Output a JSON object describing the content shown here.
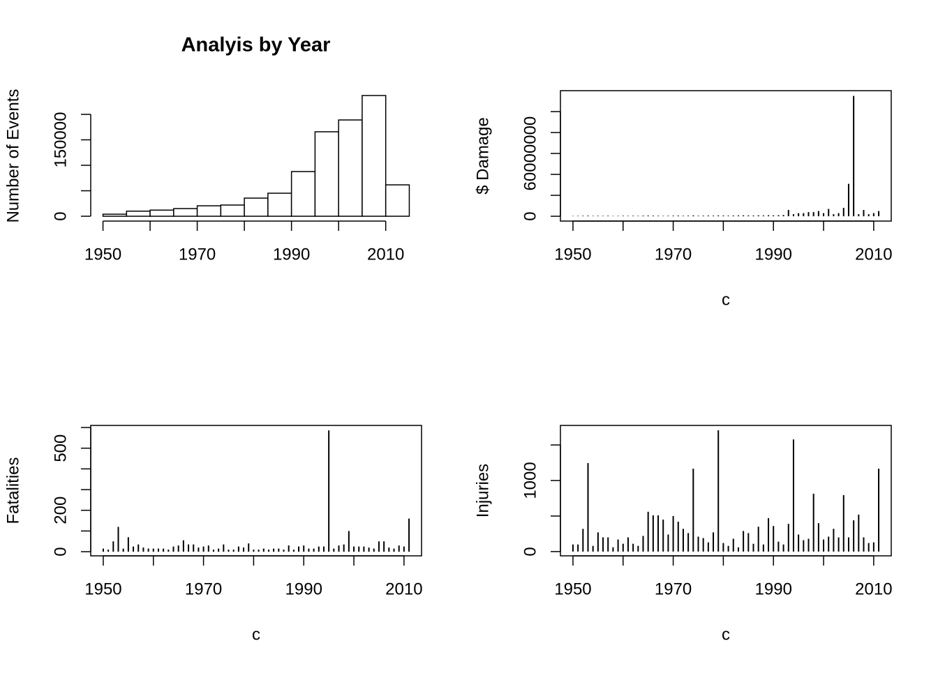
{
  "chart_data": [
    {
      "type": "histogram",
      "title": "Analyis by Year",
      "ylabel": "Number of Events",
      "bins": [
        1950,
        1955,
        1960,
        1965,
        1970,
        1975,
        1980,
        1985,
        1990,
        1995,
        2000,
        2005,
        2010,
        2015
      ],
      "values": [
        4000,
        10000,
        12000,
        15000,
        20500,
        22000,
        35600,
        45200,
        87700,
        165800,
        189000,
        237000,
        61600
      ],
      "color": "#ffffff",
      "stroke": "#000000",
      "box": false,
      "xlim": [
        1947.4,
        2017.6
      ],
      "ylim": [
        -9500,
        246500
      ],
      "xticks": [
        1950,
        {
          "value": 1960,
          "label": null
        },
        1970,
        {
          "value": 1980,
          "label": null
        },
        1990,
        {
          "value": 2000,
          "label": null
        },
        2010
      ],
      "yticks": [
        0,
        {
          "value": 50000,
          "label": null
        },
        {
          "value": 100000,
          "label": null
        },
        150000,
        {
          "value": 200000,
          "label": null
        }
      ]
    },
    {
      "type": "spike",
      "ylabel": "$ Damage",
      "xlabel": "c",
      "x": [
        1950,
        1951,
        1952,
        1953,
        1954,
        1955,
        1956,
        1957,
        1958,
        1959,
        1960,
        1961,
        1962,
        1963,
        1964,
        1965,
        1966,
        1967,
        1968,
        1969,
        1970,
        1971,
        1972,
        1973,
        1974,
        1975,
        1976,
        1977,
        1978,
        1979,
        1980,
        1981,
        1982,
        1983,
        1984,
        1985,
        1986,
        1987,
        1988,
        1989,
        1990,
        1991,
        1992,
        1993,
        1994,
        1995,
        1996,
        1997,
        1998,
        1999,
        2000,
        2001,
        2002,
        2003,
        2004,
        2005,
        2006,
        2007,
        2008,
        2009,
        2010,
        2011
      ],
      "values": [
        300000,
        400000,
        500000,
        600000,
        400000,
        500000,
        400000,
        500000,
        300000,
        400000,
        500000,
        400000,
        500000,
        400000,
        600000,
        700000,
        600000,
        500000,
        400000,
        500000,
        600000,
        700000,
        500000,
        600000,
        800000,
        500000,
        600000,
        700000,
        600000,
        800000,
        700000,
        600000,
        700000,
        800000,
        900000,
        800000,
        700000,
        900000,
        800000,
        1000000,
        900000,
        1000000,
        1200000,
        6000000,
        2000000,
        3000000,
        3000000,
        4000000,
        4000000,
        5000000,
        3000000,
        7000000,
        2000000,
        3000000,
        8000000,
        31000000,
        115000000,
        2000000,
        6000000,
        2000000,
        3000000,
        5000000
      ],
      "color": "#000000",
      "box": true,
      "xlim": [
        1947.5,
        2013.5
      ],
      "ylim": [
        -4600000,
        120000000
      ],
      "xticks": [
        1950,
        {
          "value": 1960,
          "label": null
        },
        1970,
        {
          "value": 1980,
          "label": null
        },
        1990,
        {
          "value": 2000,
          "label": null
        },
        2010
      ],
      "yticks": [
        0,
        {
          "value": 20000000,
          "label": null
        },
        {
          "value": 40000000,
          "label": null
        },
        60000000,
        {
          "value": 80000000,
          "label": null
        },
        {
          "value": 100000000,
          "label": null
        }
      ]
    },
    {
      "type": "spike",
      "ylabel": "Fatalities",
      "xlabel": "c",
      "x": [
        1950,
        1951,
        1952,
        1953,
        1954,
        1955,
        1956,
        1957,
        1958,
        1959,
        1960,
        1961,
        1962,
        1963,
        1964,
        1965,
        1966,
        1967,
        1968,
        1969,
        1970,
        1971,
        1972,
        1973,
        1974,
        1975,
        1976,
        1977,
        1978,
        1979,
        1980,
        1981,
        1982,
        1983,
        1984,
        1985,
        1986,
        1987,
        1988,
        1989,
        1990,
        1991,
        1992,
        1993,
        1994,
        1995,
        1996,
        1997,
        1998,
        1999,
        2000,
        2001,
        2002,
        2003,
        2004,
        2005,
        2006,
        2007,
        2008,
        2009,
        2010,
        2011
      ],
      "values": [
        15,
        10,
        50,
        120,
        15,
        70,
        25,
        35,
        20,
        15,
        15,
        15,
        15,
        10,
        25,
        30,
        55,
        35,
        35,
        20,
        25,
        30,
        10,
        15,
        35,
        10,
        10,
        25,
        20,
        40,
        10,
        10,
        15,
        10,
        15,
        15,
        10,
        30,
        10,
        25,
        30,
        15,
        15,
        25,
        25,
        586,
        15,
        30,
        35,
        100,
        25,
        25,
        25,
        20,
        15,
        50,
        50,
        20,
        15,
        30,
        25,
        160
      ],
      "color": "#000000",
      "box": true,
      "xlim": [
        1947.5,
        2013.5
      ],
      "ylim": [
        -20,
        610
      ],
      "xticks": [
        1950,
        {
          "value": 1960,
          "label": null
        },
        1970,
        {
          "value": 1980,
          "label": null
        },
        1990,
        {
          "value": 2000,
          "label": null
        },
        2010
      ],
      "yticks": [
        0,
        {
          "value": 100,
          "label": null
        },
        200,
        {
          "value": 300,
          "label": null
        },
        {
          "value": 400,
          "label": null
        },
        500,
        {
          "value": 600,
          "label": null
        }
      ]
    },
    {
      "type": "spike",
      "ylabel": "Injuries",
      "xlabel": "c",
      "x": [
        1950,
        1951,
        1952,
        1953,
        1954,
        1955,
        1956,
        1957,
        1958,
        1959,
        1960,
        1961,
        1962,
        1963,
        1964,
        1965,
        1966,
        1967,
        1968,
        1969,
        1970,
        1971,
        1972,
        1973,
        1974,
        1975,
        1976,
        1977,
        1978,
        1979,
        1980,
        1981,
        1982,
        1983,
        1984,
        1985,
        1986,
        1987,
        1988,
        1989,
        1990,
        1991,
        1992,
        1993,
        1994,
        1995,
        1996,
        1997,
        1998,
        1999,
        2000,
        2001,
        2002,
        2003,
        2004,
        2005,
        2006,
        2007,
        2008,
        2009,
        2010,
        2011
      ],
      "values": [
        100,
        100,
        320,
        1245,
        80,
        270,
        200,
        200,
        60,
        170,
        110,
        200,
        110,
        80,
        220,
        560,
        510,
        510,
        450,
        240,
        500,
        420,
        320,
        260,
        1167,
        210,
        190,
        130,
        270,
        1706,
        120,
        80,
        180,
        60,
        290,
        260,
        110,
        350,
        100,
        470,
        360,
        140,
        100,
        390,
        1578,
        240,
        160,
        180,
        814,
        400,
        170,
        210,
        320,
        200,
        794,
        200,
        440,
        520,
        200,
        120,
        130,
        1167
      ],
      "color": "#000000",
      "box": true,
      "xlim": [
        1947.5,
        2013.5
      ],
      "ylim": [
        -60,
        1775
      ],
      "xticks": [
        1950,
        {
          "value": 1960,
          "label": null
        },
        1970,
        {
          "value": 1980,
          "label": null
        },
        1990,
        {
          "value": 2000,
          "label": null
        },
        2010
      ],
      "yticks": [
        0,
        {
          "value": 500,
          "label": null
        },
        1000,
        {
          "value": 1500,
          "label": null
        }
      ]
    }
  ]
}
